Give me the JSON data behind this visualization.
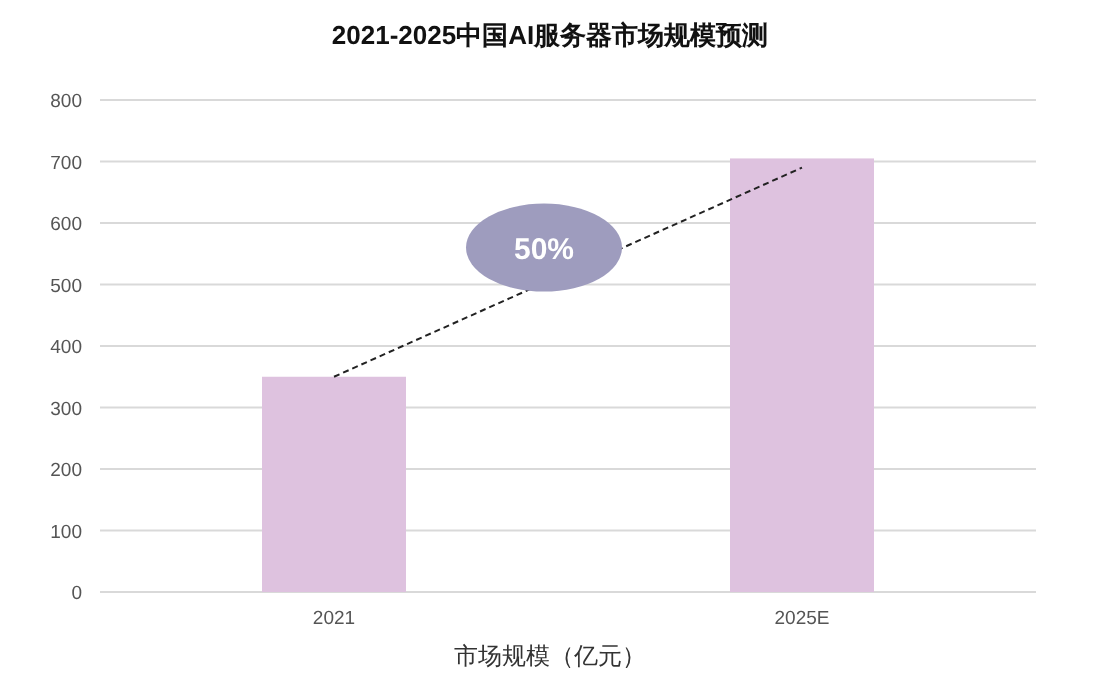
{
  "chart_data": {
    "type": "bar",
    "title": "2021-2025中国AI服务器市场规模预测",
    "xlabel": "市场规模（亿元）",
    "categories": [
      "2021",
      "2025E"
    ],
    "series": [
      {
        "color": "#dec2df",
        "values": [
          350,
          705
        ]
      },
      {
        "type": "line",
        "color": "#222222",
        "line_style": "dashed",
        "values": [
          350,
          690
        ]
      }
    ],
    "ylim": [
      0,
      800
    ],
    "yticks": [
      0,
      100,
      200,
      300,
      400,
      500,
      600,
      700,
      800
    ],
    "grid": "y",
    "annotations": [
      "50%"
    ]
  }
}
